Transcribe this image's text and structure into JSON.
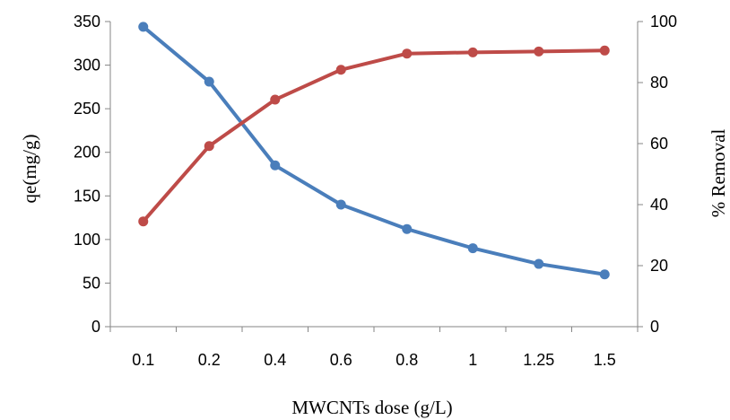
{
  "chart_data": {
    "type": "line",
    "xlabel": "MWCNTs dose (g/L)",
    "ylabel": "qe(mg/g)",
    "y2label": "% Removal",
    "categories": [
      "0.1",
      "0.2",
      "0.4",
      "0.6",
      "0.8",
      "1",
      "1.25",
      "1.5"
    ],
    "ylim": [
      0,
      350
    ],
    "yticks": [
      0,
      50,
      100,
      150,
      200,
      250,
      300,
      350
    ],
    "y2lim": [
      0,
      100
    ],
    "y2ticks": [
      0,
      20,
      40,
      60,
      80,
      100
    ],
    "grid": false,
    "series": [
      {
        "axis": "left",
        "color": "#4a7ebb",
        "values": [
          344,
          281,
          185,
          140,
          112,
          90,
          72,
          60
        ]
      },
      {
        "axis": "right",
        "color": "#be4b48",
        "values": [
          34.5,
          59.2,
          74.4,
          84.2,
          89.5,
          89.9,
          90.2,
          90.5
        ]
      }
    ]
  }
}
